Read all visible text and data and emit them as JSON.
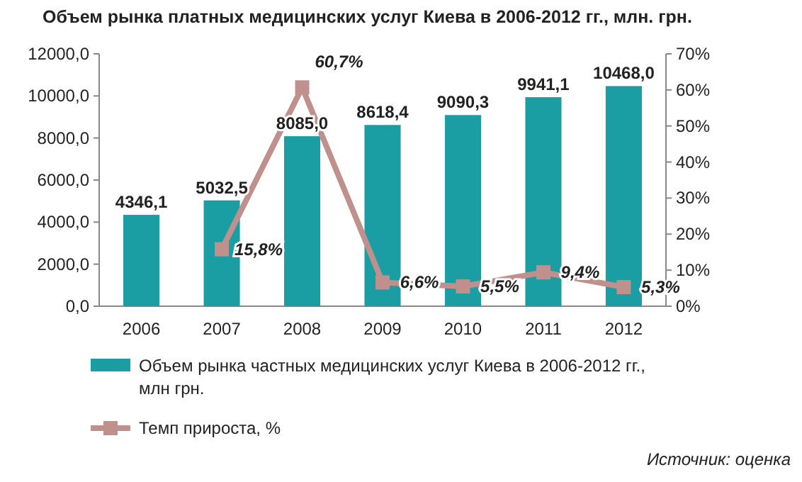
{
  "chart_data": {
    "type": "bar",
    "title": "Объем рынка платных медицинских услуг Киева в 2006-2012 гг., млн. грн.",
    "categories": [
      "2006",
      "2007",
      "2008",
      "2009",
      "2010",
      "2011",
      "2012"
    ],
    "series": [
      {
        "name": "Объем рынка частных медицинских услуг Киева в 2006-2012 гг., млн грн.",
        "color": "#1b9ea3",
        "values": [
          4346.1,
          5032.5,
          8085.0,
          8618.4,
          9090.3,
          9941.1,
          10468.0
        ],
        "value_labels": [
          "4346,1",
          "5032,5",
          "8085,0",
          "8618,4",
          "9090,3",
          "9941,1",
          "10468,0"
        ]
      },
      {
        "name": "Темп прироста, %",
        "type": "line",
        "axis": "y2",
        "color": "#c0908c",
        "values": [
          null,
          15.8,
          60.7,
          6.6,
          5.5,
          9.4,
          5.3
        ],
        "value_labels": [
          null,
          "15,8%",
          "60,7%",
          "6,6%",
          "5,5%",
          "9,4%",
          "5,3%"
        ]
      }
    ],
    "ylim": [
      0,
      12000
    ],
    "yticks": [
      {
        "value": 0,
        "label": "0,0"
      },
      {
        "value": 2000,
        "label": "2000,0"
      },
      {
        "value": 4000,
        "label": "4000,0"
      },
      {
        "value": 6000,
        "label": "6000,0"
      },
      {
        "value": 8000,
        "label": "8000,0"
      },
      {
        "value": 10000,
        "label": "10000,0"
      },
      {
        "value": 12000,
        "label": "12000,0"
      }
    ],
    "y2lim": [
      0,
      70
    ],
    "y2ticks": [
      {
        "value": 0,
        "label": "0%"
      },
      {
        "value": 10,
        "label": "10%"
      },
      {
        "value": 20,
        "label": "20%"
      },
      {
        "value": 30,
        "label": "30%"
      },
      {
        "value": 40,
        "label": "40%"
      },
      {
        "value": 50,
        "label": "50%"
      },
      {
        "value": 60,
        "label": "60%"
      },
      {
        "value": 70,
        "label": "70%"
      }
    ],
    "marker": "square",
    "legend": "bottom left",
    "grid": false,
    "annotations": [
      "Источник: оценка"
    ]
  }
}
